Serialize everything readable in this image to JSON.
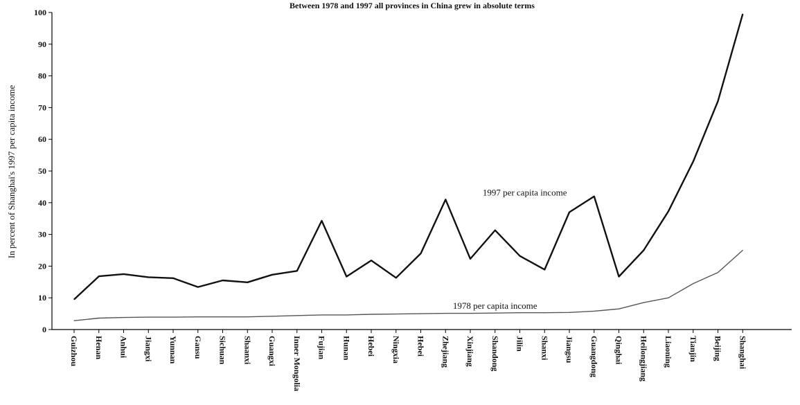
{
  "chart_data": {
    "type": "line",
    "title": "Between 1978 and 1997 all provinces in China grew in absolute terms",
    "xlabel": "",
    "ylabel": "In percent of Shanghai's 1997 per capita income",
    "ylim": [
      0,
      100
    ],
    "yticks": [
      0,
      10,
      20,
      30,
      40,
      50,
      60,
      70,
      80,
      90,
      100
    ],
    "grid": false,
    "legend": "none",
    "categories": [
      "Guizhou",
      "Henan",
      "Anhui",
      "Jiangxi",
      "Yunnan",
      "Gansu",
      "Sichuan",
      "Shaanxi",
      "Guangxi",
      "Inner Mongolia",
      "Fujian",
      "Hunan",
      "Hebei",
      "Ningxia",
      "Hebei",
      "Zhejiang",
      "Xinjiang",
      "Shandong",
      "Jilin",
      "Shanxi",
      "Jiangsu",
      "Guangdong",
      "Qinghai",
      "Heilongjiang",
      "Liaoning",
      "Tianjin",
      "Beijing",
      "Shanghai"
    ],
    "series": [
      {
        "name": "1997 per capita income",
        "values": [
          9.5,
          16.8,
          17.5,
          16.5,
          16.2,
          13.4,
          15.5,
          14.9,
          17.3,
          18.5,
          34.3,
          16.7,
          21.8,
          16.3,
          24.0,
          41.0,
          22.3,
          31.3,
          23.2,
          18.9,
          37.0,
          42.0,
          16.7,
          25.0,
          37.3,
          53.0,
          72.0,
          99.5
        ]
      },
      {
        "name": "1978 per capita income",
        "values": [
          2.8,
          3.6,
          3.8,
          3.9,
          3.9,
          4.0,
          4.0,
          4.0,
          4.2,
          4.4,
          4.6,
          4.6,
          4.8,
          4.9,
          5.0,
          5.1,
          5.1,
          5.2,
          5.3,
          5.3,
          5.4,
          5.8,
          6.5,
          8.5,
          10.0,
          14.5,
          18.0,
          25.0
        ]
      }
    ],
    "annotations": [
      {
        "text": "1997 per capita income",
        "series": "1997 per capita income"
      },
      {
        "text": "1978 per capita income",
        "series": "1978 per capita income"
      }
    ]
  }
}
